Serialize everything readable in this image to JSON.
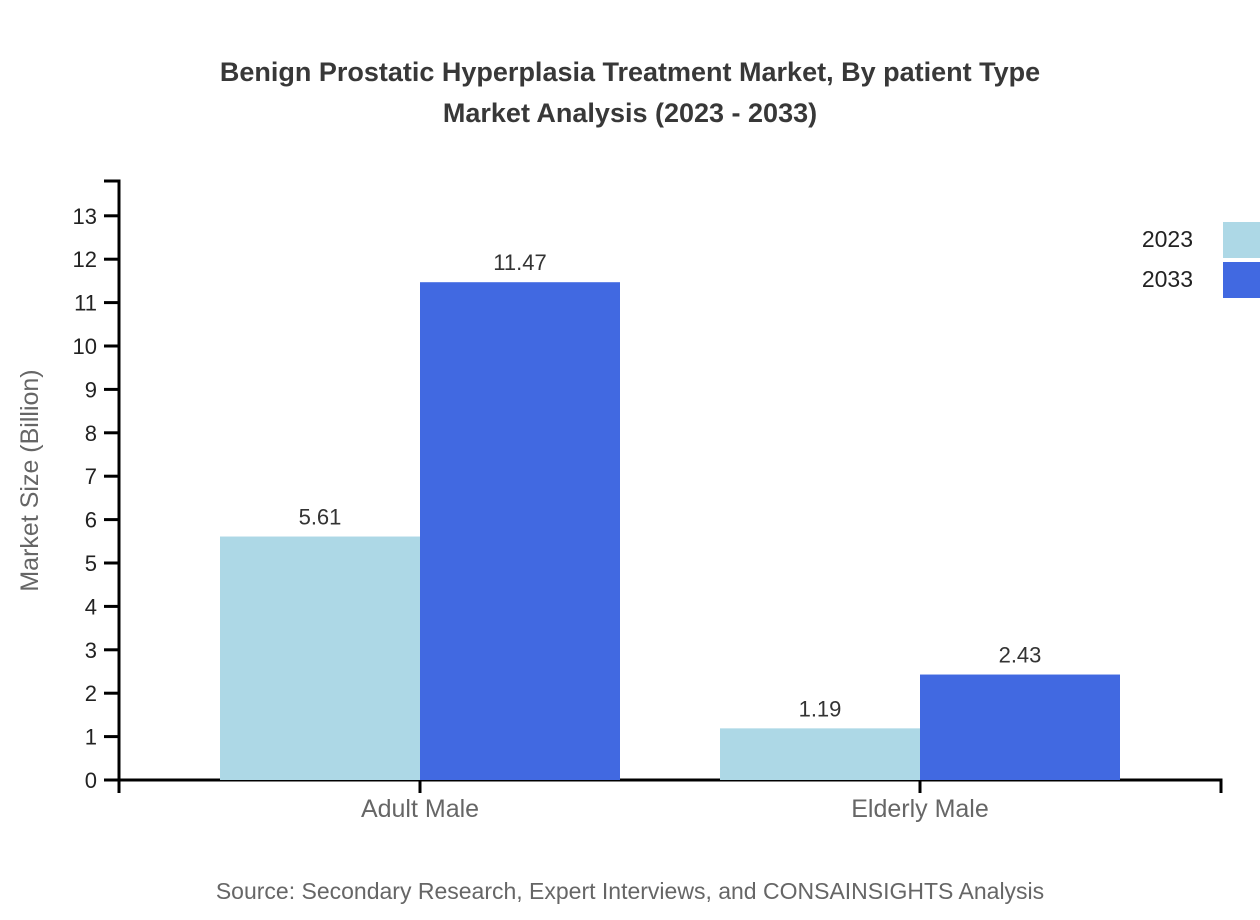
{
  "page": {
    "title_line1": "Benign Prostatic Hyperplasia Treatment Market, By patient Type",
    "title_line2": "Market Analysis (2023 - 2033)",
    "source": "Source: Secondary Research, Expert Interviews, and CONSAINSIGHTS Analysis"
  },
  "chart_data": {
    "type": "bar",
    "title": "Benign Prostatic Hyperplasia Treatment Market, By patient Type Market Analysis (2023 - 2033)",
    "categories": [
      "Adult Male",
      "Elderly Male"
    ],
    "series": [
      {
        "name": "2023",
        "color": "#ADD8E6",
        "values": [
          5.61,
          1.19
        ]
      },
      {
        "name": "2033",
        "color": "#4169E1",
        "values": [
          11.47,
          2.43
        ]
      }
    ],
    "xlabel": "",
    "ylabel": "Market Size (Billion)",
    "ylim": [
      0,
      13
    ],
    "ytick_step": 1,
    "yticks": [
      0,
      1,
      2,
      3,
      4,
      5,
      6,
      7,
      8,
      9,
      10,
      11,
      12,
      13
    ],
    "value_labels": [
      "5.61",
      "11.47",
      "1.19",
      "2.43"
    ],
    "grid": false,
    "legend_position": "top-right",
    "axis_color": "#000000",
    "tick_label_color": "#222222",
    "category_label_color": "#666666",
    "value_label_color": "#333333",
    "source": "Source: Secondary Research, Expert Interviews, and CONSAINSIGHTS Analysis"
  }
}
